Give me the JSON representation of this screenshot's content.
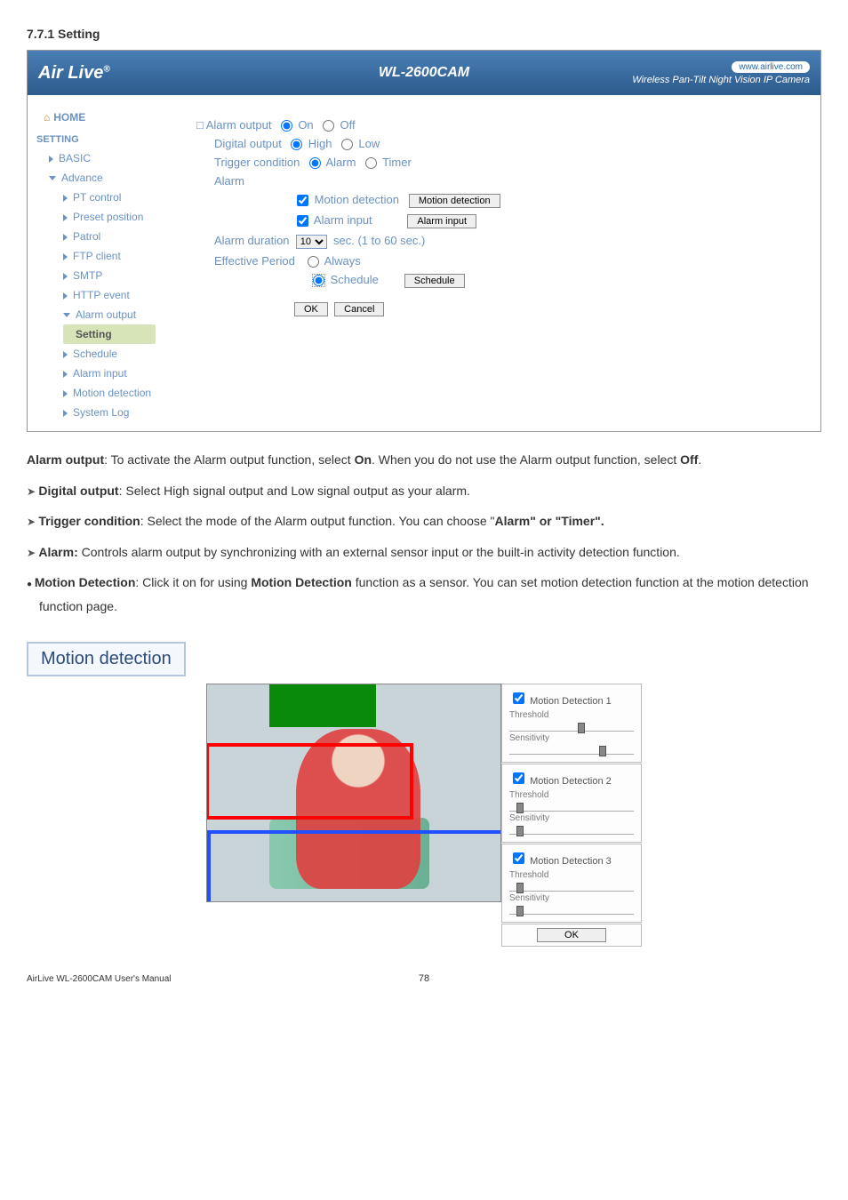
{
  "section_heading": "7.7.1 Setting",
  "header": {
    "logo": "Air Live",
    "logo_sup": "®",
    "product": "WL-2600CAM",
    "url": "www.airlive.com",
    "tagline": "Wireless Pan-Tilt Night Vision IP Camera"
  },
  "sidebar": {
    "home": "HOME",
    "setting": "SETTING",
    "basic": "BASIC",
    "advance": "Advance",
    "items": [
      "PT control",
      "Preset position",
      "Patrol",
      "FTP client",
      "SMTP",
      "HTTP event",
      "Alarm output"
    ],
    "selected": "Setting",
    "items2": [
      "Schedule",
      "Alarm input",
      "Motion detection",
      "System Log"
    ]
  },
  "form": {
    "alarm_output": "Alarm output",
    "on": "On",
    "off": "Off",
    "digital_output": "Digital output",
    "high": "High",
    "low": "Low",
    "trigger_condition": "Trigger condition",
    "alarm": "Alarm",
    "timer": "Timer",
    "alarm_label": "Alarm",
    "motion_detection": "Motion detection",
    "motion_detection_btn": "Motion detection",
    "alarm_input": "Alarm input",
    "alarm_input_btn": "Alarm input",
    "alarm_duration": "Alarm duration",
    "duration_value": "10",
    "duration_suffix": "sec. (1 to 60 sec.)",
    "effective_period": "Effective Period",
    "always": "Always",
    "schedule": "Schedule",
    "schedule_btn": "Schedule",
    "ok": "OK",
    "cancel": "Cancel"
  },
  "prose": {
    "p1a": "Alarm output",
    "p1b": ": To activate the Alarm output function, select ",
    "p1c": "On",
    "p1d": ". When you do not use the Alarm output function, select ",
    "p1e": "Off",
    "p1f": ".",
    "b1a": "Digital output",
    "b1b": ": Select High signal output and Low signal output as your alarm.",
    "b2a": "Trigger condition",
    "b2b": ": Select the mode of the Alarm output function. You can choose \"",
    "b2c": "Alarm\" or \"Timer\".",
    "b3a": "Alarm:",
    "b3b": " Controls alarm output by synchronizing with an external sensor input or the built-in activity detection function.",
    "b4a": "Motion Detection",
    "b4b": ": Click it on for using ",
    "b4c": "Motion Detection",
    "b4d": " function as a sensor. You can set motion detection function at the motion detection function page."
  },
  "motion_box": "Motion detection",
  "md": {
    "cards": [
      {
        "title": "Motion Detection 1",
        "thumb1": 55,
        "thumb2": 72
      },
      {
        "title": "Motion Detection 2",
        "thumb1": 6,
        "thumb2": 6
      },
      {
        "title": "Motion Detection 3",
        "thumb1": 6,
        "thumb2": 6
      }
    ],
    "threshold": "Threshold",
    "sensitivity": "Sensitivity",
    "ok": "OK"
  },
  "footer": {
    "page": "78",
    "manual": "AirLive WL-2600CAM User's Manual"
  }
}
